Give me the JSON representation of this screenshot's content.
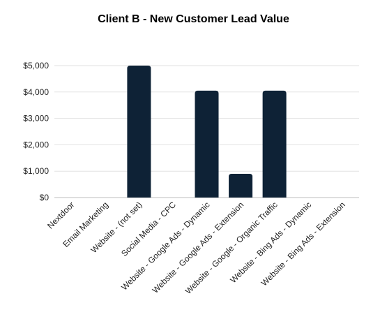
{
  "chart_data": {
    "type": "bar",
    "title": "Client B - New Customer Lead Value",
    "xlabel": "",
    "ylabel": "",
    "categories": [
      "Nextdoor",
      "Email Marketing",
      "Website - (not set)",
      "Social Media - CPC",
      "Website - Google Ads - Dynamic",
      "Website - Google Ads - Extension",
      "Website - Google - Organic Traffic",
      "Website - Bing Ads - Dynamic",
      "Website - Bing Ads - Extension"
    ],
    "values": [
      0,
      0,
      5000,
      0,
      4050,
      900,
      4050,
      0,
      0
    ],
    "ylim": [
      0,
      5000
    ],
    "yticks": [
      0,
      1000,
      2000,
      3000,
      4000,
      5000
    ],
    "ytick_labels": [
      "$0",
      "$1,000",
      "$2,000",
      "$3,000",
      "$4,000",
      "$5,000"
    ],
    "grid": true,
    "bar_color": "#0e2236",
    "grid_color": "#e2e2e2",
    "axis_color": "#bdbdbd"
  }
}
